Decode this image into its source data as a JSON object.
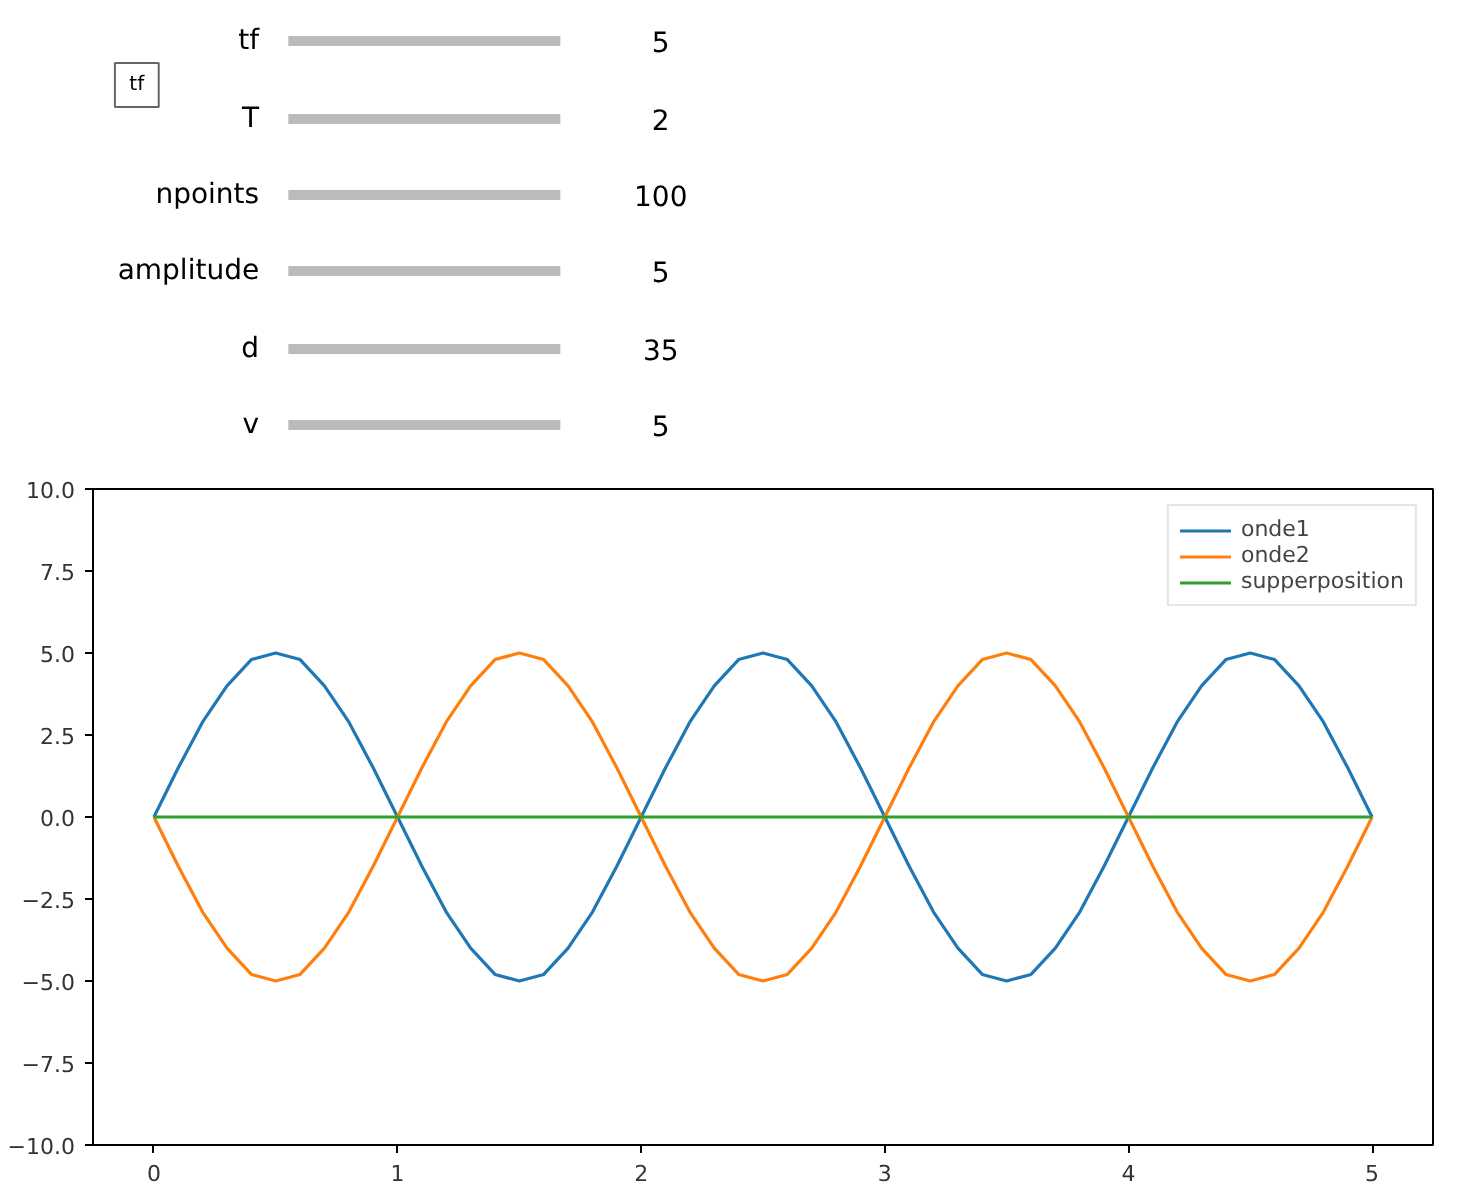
{
  "chart_data": {
    "type": "line",
    "annotations": [
      "tf",
      "tf",
      "5",
      "T",
      "2",
      "npoints",
      "100",
      "amplitude",
      "5",
      "d",
      "35",
      "v",
      "5"
    ],
    "x": [
      0,
      0.1,
      0.2,
      0.3,
      0.4,
      0.5,
      0.6,
      0.7,
      0.8,
      0.9,
      1.0,
      1.1,
      1.2,
      1.3,
      1.4,
      1.5,
      1.6,
      1.7,
      1.8,
      1.9,
      2.0,
      2.1,
      2.2,
      2.3,
      2.4,
      2.5,
      2.6,
      2.7,
      2.8,
      2.9,
      3.0,
      3.1,
      3.2,
      3.3,
      3.4,
      3.5,
      3.6,
      3.7,
      3.8,
      3.9,
      4.0,
      4.1,
      4.2,
      4.3,
      4.4,
      4.5,
      4.6,
      4.7,
      4.8,
      4.9,
      5.0
    ],
    "series": [
      {
        "name": "onde1",
        "color": "#1f77b4",
        "values": [
          0,
          1.5,
          2.9,
          4.0,
          4.8,
          5.0,
          4.8,
          4.0,
          2.9,
          1.5,
          0,
          -1.5,
          -2.9,
          -4.0,
          -4.8,
          -5.0,
          -4.8,
          -4.0,
          -2.9,
          -1.5,
          0,
          1.5,
          2.9,
          4.0,
          4.8,
          5.0,
          4.8,
          4.0,
          2.9,
          1.5,
          0,
          -1.5,
          -2.9,
          -4.0,
          -4.8,
          -5.0,
          -4.8,
          -4.0,
          -2.9,
          -1.5,
          0,
          1.5,
          2.9,
          4.0,
          4.8,
          5.0,
          4.8,
          4.0,
          2.9,
          1.5,
          0
        ]
      },
      {
        "name": "onde2",
        "color": "#ff7f0e",
        "values": [
          0,
          -1.5,
          -2.9,
          -4.0,
          -4.8,
          -5.0,
          -4.8,
          -4.0,
          -2.9,
          -1.5,
          0,
          1.5,
          2.9,
          4.0,
          4.8,
          5.0,
          4.8,
          4.0,
          2.9,
          1.5,
          0,
          -1.5,
          -2.9,
          -4.0,
          -4.8,
          -5.0,
          -4.8,
          -4.0,
          -2.9,
          -1.5,
          0,
          1.5,
          2.9,
          4.0,
          4.8,
          5.0,
          4.8,
          4.0,
          2.9,
          1.5,
          0,
          -1.5,
          -2.9,
          -4.0,
          -4.8,
          -5.0,
          -4.8,
          -4.0,
          -2.9,
          -1.5,
          0
        ]
      },
      {
        "name": "supperposition",
        "color": "#2ca02c",
        "values": [
          0,
          0,
          0,
          0,
          0,
          0,
          0,
          0,
          0,
          0,
          0,
          0,
          0,
          0,
          0,
          0,
          0,
          0,
          0,
          0,
          0,
          0,
          0,
          0,
          0,
          0,
          0,
          0,
          0,
          0,
          0,
          0,
          0,
          0,
          0,
          0,
          0,
          0,
          0,
          0,
          0,
          0,
          0,
          0,
          0,
          0,
          0,
          0,
          0,
          0,
          0
        ]
      }
    ],
    "xlim": [
      -0.25,
      5.25
    ],
    "ylim": [
      -10,
      10
    ],
    "xticks": [
      0,
      1,
      2,
      3,
      4,
      5
    ],
    "yticks": [
      {
        "value": -10,
        "label": "−10.0"
      },
      {
        "value": -7.5,
        "label": "−7.5"
      },
      {
        "value": -5,
        "label": "−5.0"
      },
      {
        "value": -2.5,
        "label": "−2.5"
      },
      {
        "value": 0,
        "label": "0.0"
      },
      {
        "value": 2.5,
        "label": "2.5"
      },
      {
        "value": 5,
        "label": "5.0"
      },
      {
        "value": 7.5,
        "label": "7.5"
      },
      {
        "value": 10,
        "label": "10.0"
      }
    ],
    "grid": false,
    "legend": "top right",
    "line_style": "solid",
    "marker": "none"
  }
}
